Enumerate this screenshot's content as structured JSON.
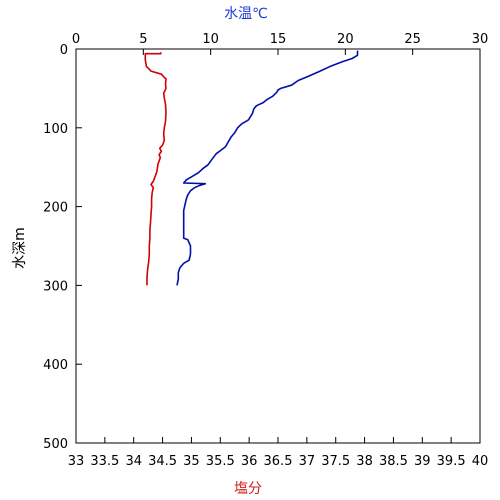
{
  "chart_data": {
    "type": "line",
    "title": "",
    "y_axis": {
      "label": "水深m",
      "range": [
        0,
        500
      ],
      "ticks": [
        0,
        100,
        200,
        300,
        400,
        500
      ],
      "inverted": true
    },
    "x_axis_top": {
      "label": "水温℃",
      "range": [
        0,
        30
      ],
      "ticks": [
        0,
        5,
        10,
        15,
        20,
        25,
        30
      ],
      "color": "#1f3bd6"
    },
    "x_axis_bottom": {
      "label": "塩分",
      "range": [
        33,
        40
      ],
      "ticks": [
        "33",
        "33.5",
        "34",
        "34.5",
        "35",
        "35.5",
        "36",
        "36.5",
        "37",
        "37.5",
        "38",
        "38.5",
        "39",
        "39.5",
        "40"
      ],
      "color": "#d62020"
    },
    "grid": false,
    "series": [
      {
        "axis": "top",
        "color": "#0010a8",
        "points": [
          [
            20.9,
            2
          ],
          [
            20.9,
            8
          ],
          [
            20.5,
            12
          ],
          [
            19.8,
            16
          ],
          [
            18.9,
            22
          ],
          [
            18.0,
            29
          ],
          [
            17.2,
            35
          ],
          [
            16.5,
            40
          ],
          [
            16.0,
            46
          ],
          [
            15.2,
            50
          ],
          [
            15.0,
            52
          ],
          [
            14.9,
            55
          ],
          [
            14.6,
            60
          ],
          [
            14.2,
            64
          ],
          [
            13.9,
            68
          ],
          [
            13.4,
            72
          ],
          [
            13.2,
            76
          ],
          [
            13.1,
            82
          ],
          [
            12.8,
            90
          ],
          [
            12.3,
            95
          ],
          [
            12.0,
            100
          ],
          [
            11.8,
            106
          ],
          [
            11.5,
            112
          ],
          [
            11.3,
            118
          ],
          [
            11.1,
            124
          ],
          [
            10.8,
            128
          ],
          [
            10.4,
            133
          ],
          [
            10.1,
            140
          ],
          [
            9.8,
            147
          ],
          [
            9.4,
            152
          ],
          [
            9.1,
            157
          ],
          [
            8.8,
            160
          ],
          [
            8.5,
            163
          ],
          [
            8.2,
            166
          ],
          [
            8.0,
            170
          ],
          [
            9.6,
            171
          ],
          [
            9.2,
            173
          ],
          [
            8.8,
            176
          ],
          [
            8.5,
            180
          ],
          [
            8.3,
            185
          ],
          [
            8.2,
            190
          ],
          [
            8.1,
            197
          ],
          [
            8.0,
            205
          ],
          [
            8.0,
            215
          ],
          [
            8.0,
            225
          ],
          [
            8.0,
            235
          ],
          [
            8.0,
            240
          ],
          [
            8.3,
            242
          ],
          [
            8.5,
            250
          ],
          [
            8.5,
            260
          ],
          [
            8.4,
            268
          ],
          [
            8.0,
            272
          ],
          [
            7.7,
            278
          ],
          [
            7.6,
            284
          ],
          [
            7.6,
            292
          ],
          [
            7.5,
            300
          ]
        ]
      },
      {
        "axis": "bottom",
        "color": "#d20000",
        "points": [
          [
            34.47,
            4
          ],
          [
            34.47,
            6
          ],
          [
            34.2,
            6
          ],
          [
            34.2,
            14
          ],
          [
            34.22,
            22
          ],
          [
            34.3,
            28
          ],
          [
            34.48,
            32
          ],
          [
            34.53,
            36
          ],
          [
            34.56,
            38
          ],
          [
            34.55,
            44
          ],
          [
            34.56,
            50
          ],
          [
            34.52,
            56
          ],
          [
            34.53,
            62
          ],
          [
            34.55,
            70
          ],
          [
            34.56,
            80
          ],
          [
            34.55,
            92
          ],
          [
            34.53,
            100
          ],
          [
            34.52,
            108
          ],
          [
            34.53,
            116
          ],
          [
            34.5,
            122
          ],
          [
            34.45,
            126
          ],
          [
            34.48,
            130
          ],
          [
            34.44,
            134
          ],
          [
            34.46,
            138
          ],
          [
            34.42,
            146
          ],
          [
            34.4,
            156
          ],
          [
            34.36,
            164
          ],
          [
            34.34,
            168
          ],
          [
            34.3,
            172
          ],
          [
            34.34,
            176
          ],
          [
            34.32,
            182
          ],
          [
            34.31,
            190
          ],
          [
            34.31,
            200
          ],
          [
            34.3,
            210
          ],
          [
            34.29,
            220
          ],
          [
            34.28,
            230
          ],
          [
            34.28,
            240
          ],
          [
            34.27,
            250
          ],
          [
            34.27,
            260
          ],
          [
            34.26,
            270
          ],
          [
            34.24,
            280
          ],
          [
            34.23,
            290
          ],
          [
            34.23,
            300
          ]
        ]
      }
    ]
  }
}
